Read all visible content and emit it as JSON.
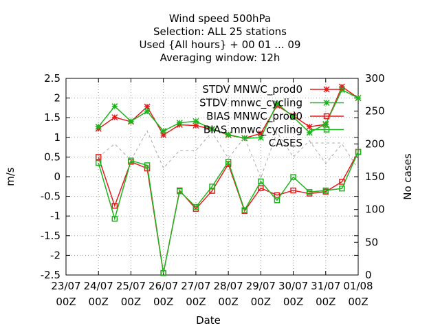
{
  "chart_data": {
    "type": "line",
    "title_lines": [
      "Wind speed 500hPa",
      "Selection: ALL      25 stations",
      "Used {All hours} + 00 01 ... 09",
      "Averaging window: 12h"
    ],
    "xlabel": "Date",
    "ylabel": "m/s",
    "y2label": "No cases",
    "xlim": [
      0,
      12
    ],
    "ylim": [
      -2.5,
      2.5
    ],
    "y2lim": [
      0,
      300
    ],
    "grid": true,
    "legend_position": "top-right",
    "x_ticks": [
      {
        "value": 0,
        "line1": "23/07",
        "line2": "00Z"
      },
      {
        "value": 1,
        "line1": "24/07",
        "line2": "00Z"
      },
      {
        "value": 2,
        "line1": "25/07",
        "line2": "00Z"
      },
      {
        "value": 3,
        "line1": "26/07",
        "line2": "00Z"
      },
      {
        "value": 4,
        "line1": "27/07",
        "line2": "00Z"
      },
      {
        "value": 5,
        "line1": "28/07",
        "line2": "00Z"
      },
      {
        "value": 6,
        "line1": "29/07",
        "line2": "00Z"
      },
      {
        "value": 7,
        "line1": "30/07",
        "line2": "00Z"
      },
      {
        "value": 8,
        "line1": "31/07",
        "line2": "00Z"
      },
      {
        "value": 9,
        "line1": "01/08",
        "line2": "00Z"
      }
    ],
    "y_ticks": [
      {
        "value": 2.5,
        "label": "2.5"
      },
      {
        "value": 2,
        "label": "2"
      },
      {
        "value": 1.5,
        "label": "1.5"
      },
      {
        "value": 1,
        "label": "1"
      },
      {
        "value": 0.5,
        "label": "0.5"
      },
      {
        "value": 0,
        "label": "0"
      },
      {
        "value": -0.5,
        "label": "-0.5"
      },
      {
        "value": -1,
        "label": "-1"
      },
      {
        "value": -1.5,
        "label": "-1.5"
      },
      {
        "value": -2,
        "label": "-2"
      },
      {
        "value": -2.5,
        "label": "-2.5"
      }
    ],
    "y2_ticks": [
      {
        "value": 300,
        "label": "300"
      },
      {
        "value": 250,
        "label": "250"
      },
      {
        "value": 200,
        "label": "200"
      },
      {
        "value": 150,
        "label": "150"
      },
      {
        "value": 100,
        "label": "100"
      },
      {
        "value": 50,
        "label": "50"
      },
      {
        "value": 0,
        "label": "0"
      }
    ],
    "series": [
      {
        "name": "STDV MNWC_prod0",
        "color": "#e41a1c",
        "marker": "star",
        "axis": "y",
        "x": [
          1,
          1.5,
          2,
          2.5,
          3,
          3.5,
          4,
          4.5,
          5,
          5.5,
          6,
          6.5,
          7,
          7.5,
          8,
          8.5,
          9
        ],
        "y": [
          1.22,
          1.51,
          1.4,
          1.78,
          1.06,
          1.32,
          1.3,
          1.21,
          1.06,
          0.98,
          1.1,
          1.81,
          1.55,
          1.27,
          1.33,
          2.29,
          2.0
        ]
      },
      {
        "name": "STDV mnwc_cycling",
        "color": "#1db41d",
        "marker": "star",
        "axis": "y",
        "x": [
          1,
          1.5,
          2,
          2.5,
          3,
          3.5,
          4,
          4.5,
          5,
          5.5,
          6,
          6.5,
          7,
          7.5,
          8,
          8.5,
          9
        ],
        "y": [
          1.27,
          1.79,
          1.41,
          1.66,
          1.16,
          1.37,
          1.41,
          1.21,
          1.07,
          0.98,
          0.99,
          1.86,
          1.52,
          1.12,
          1.34,
          2.21,
          2.0
        ]
      },
      {
        "name": "BIAS MNWC_prod0",
        "color": "#e41a1c",
        "marker": "square",
        "axis": "y",
        "x": [
          1,
          1.5,
          2,
          2.5,
          3,
          3.5,
          4,
          4.5,
          5,
          5.5,
          6,
          6.5,
          7,
          7.5,
          8,
          8.5,
          9
        ],
        "y": [
          0.5,
          -0.74,
          0.38,
          0.21,
          -2.45,
          -0.35,
          -0.82,
          -0.36,
          0.32,
          -0.87,
          -0.29,
          -0.47,
          -0.35,
          -0.43,
          -0.38,
          -0.13,
          0.63
        ]
      },
      {
        "name": "BIAS mnwc_cycling",
        "color": "#1db41d",
        "marker": "square",
        "axis": "y",
        "x": [
          1,
          1.5,
          2,
          2.5,
          3,
          3.5,
          4,
          4.5,
          5,
          5.5,
          6,
          6.5,
          7,
          7.5,
          8,
          8.5,
          9
        ],
        "y": [
          0.35,
          -1.07,
          0.41,
          0.29,
          -2.45,
          -0.37,
          -0.77,
          -0.25,
          0.38,
          -0.85,
          -0.12,
          -0.6,
          -0.01,
          -0.39,
          -0.35,
          -0.3,
          0.63
        ]
      },
      {
        "name": "CASES",
        "color": "#aaaaaa",
        "marker": "none",
        "axis": "y2",
        "dash": true,
        "x": [
          1,
          1.5,
          2,
          2.5,
          3,
          3.5,
          4,
          4.5,
          5,
          5.5,
          6,
          6.5,
          7,
          7.5,
          8,
          8.5,
          9
        ],
        "y": [
          180,
          200,
          175,
          220,
          163,
          190,
          190,
          218,
          178,
          210,
          148,
          218,
          180,
          205,
          170,
          200,
          162
        ]
      }
    ]
  }
}
